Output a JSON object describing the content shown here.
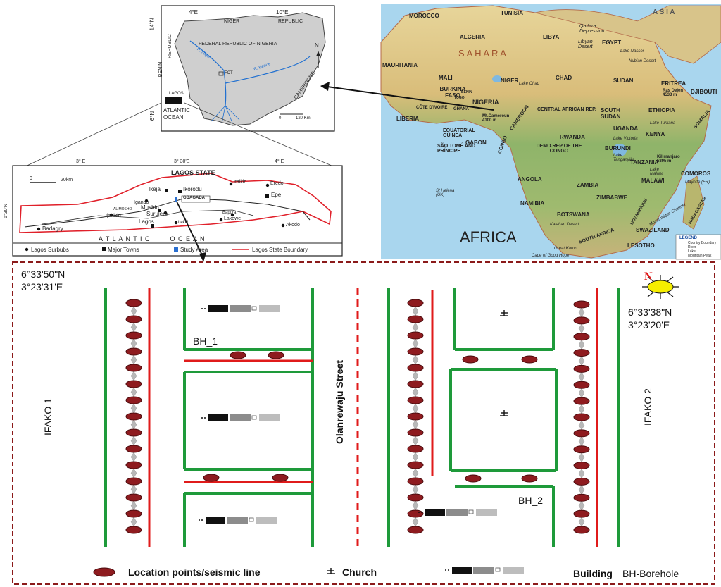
{
  "nigeria_inset": {
    "lat_labels": [
      "14°N",
      "6°N"
    ],
    "lon_labels": [
      "4°E",
      "10°E"
    ],
    "country_title": "FEDERAL REPUBLIC OF NIGERIA",
    "neighbors": [
      "NIGER",
      "REPUBLIC",
      "BENIN",
      "REPUBLIC",
      "CAMEROONS"
    ],
    "rivers": [
      "R. Niger",
      "R. Benue"
    ],
    "fct": "FCT",
    "lagos": "LAGOS",
    "ocean": [
      "ATLANTIC",
      "OCEAN"
    ],
    "north": "N",
    "scale": [
      "0",
      "120 Km"
    ]
  },
  "lagos_inset": {
    "title": "LAGOS STATE",
    "lon_labels": [
      "3° E",
      "3° 30'E",
      "4° E"
    ],
    "lat_label": "6°30'N",
    "scale": [
      "0",
      "20km"
    ],
    "places": [
      "Ikeja",
      "Ikorodu",
      "Itaikin",
      "Eredo",
      "Epe",
      "Igando",
      "GBAGADA",
      "ALIMOSHO",
      "Ijanikin",
      "Mushin",
      "Surulere",
      "Lagos",
      "Badagry",
      "Lekki",
      "Bapora",
      "Lakowe",
      "Akodo"
    ],
    "ocean": "A T L A N T I C        O C E A N",
    "legend": [
      "Lagos Surbubs",
      "Major Towns",
      "Study Area",
      "Lagos State Boundary"
    ]
  },
  "africa_map": {
    "title": "AFRICA",
    "asia": "A S I A",
    "sahara": "S  A  H  A  R  A",
    "countries": [
      "MOROCCO",
      "TUNISIA",
      "ALGERIA",
      "LIBYA",
      "EGYPT",
      "MAURITANIA",
      "MALI",
      "NIGER",
      "CHAD",
      "SUDAN",
      "ERITREA",
      "DJIBOUTI",
      "BURKINA FASO",
      "NIGERIA",
      "CÔTE D'IVOIRE",
      "GHANA",
      "TOGO",
      "BENIN",
      "LIBERIA",
      "CAMEROON",
      "CENTRAL AFRICAN REP.",
      "SOUTH SUDAN",
      "ETHIOPIA",
      "SOMALIA",
      "UGANDA",
      "KENYA",
      "EQUATORIAL GUINEA",
      "GABON",
      "CONGO",
      "DEMO.REP OF THE CONGO",
      "RWANDA",
      "BURUNDI",
      "TANZANIA",
      "SÃO TOMÉ AND PRÍNCIPE",
      "ANGOLA",
      "ZAMBIA",
      "MALAWI",
      "COMOROS",
      "NAMIBIA",
      "ZIMBABWE",
      "MOZAMBIQUE",
      "BOTSWANA",
      "MADAGASCAR",
      "SOUTH AFRICA",
      "SWAZILAND",
      "LESOTHO"
    ],
    "features": [
      "Qattara Depression",
      "Libyan Desert",
      "Nubian Desert",
      "Lake Nasser",
      "Ras Dejen 4533 m",
      "Lake Chad",
      "Mt.Cameroun 4100 m",
      "Kilimanjaro 5895 m",
      "Lake Victoria",
      "Lake Tanganyika",
      "Lake Malawi",
      "Lake Turkana",
      "St Helena (UK)",
      "Kalahari Desert",
      "Great Karoo",
      "Cape of Good Hope",
      "Mozambique Channel",
      "Mayotte (FR)"
    ],
    "legend_title": "LEGEND",
    "legend_items": [
      "Country Boundary",
      "River",
      "Lake",
      "Mountain Peak"
    ]
  },
  "site_map": {
    "coord_nw": [
      "6°33'50\"N",
      "3°23'31'E"
    ],
    "coord_ne": [
      "6°33'38\"N",
      "3°23'20'E"
    ],
    "north": "N",
    "street_left": "IFAKO 1",
    "street_center": "Olanrewaju Street",
    "street_right": "IFAKO 2",
    "bh1": "BH_1",
    "bh2": "BH_2",
    "legend": {
      "location": "Location points/seismic line",
      "church": "Church",
      "building": "Building",
      "borehole": "BH-Borehole"
    },
    "colors": {
      "road": "#1e9a3a",
      "seismic": "#e01b1b",
      "marker": "#8e1b1f",
      "frame": "#8b1a1a"
    }
  }
}
